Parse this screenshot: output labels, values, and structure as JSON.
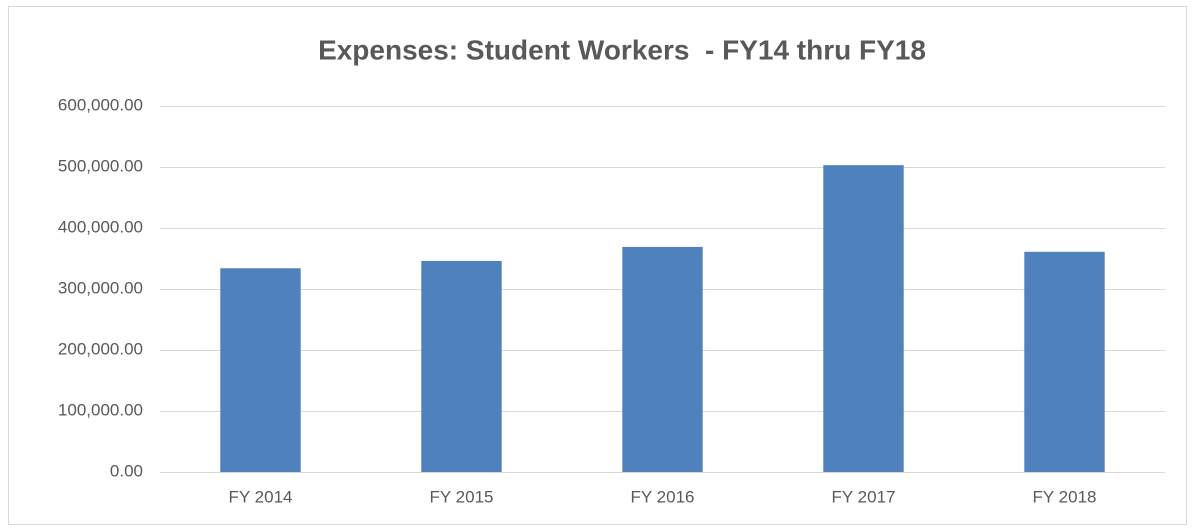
{
  "chart_data": {
    "type": "bar",
    "title": "Expenses: Student Workers  - FY14 thru FY18",
    "categories": [
      "FY 2014",
      "FY 2015",
      "FY 2016",
      "FY 2017",
      "FY 2018"
    ],
    "values": [
      334000,
      346000,
      369000,
      503000,
      361000
    ],
    "color": "#4f81bd",
    "ylim": [
      0,
      600000
    ],
    "yticks": [
      {
        "value": 0,
        "label": "0.00"
      },
      {
        "value": 100000,
        "label": "100,000.00"
      },
      {
        "value": 200000,
        "label": "200,000.00"
      },
      {
        "value": 300000,
        "label": "300,000.00"
      },
      {
        "value": 400000,
        "label": "400,000.00"
      },
      {
        "value": 500000,
        "label": "500,000.00"
      },
      {
        "value": 600000,
        "label": "600,000.00"
      }
    ],
    "grid": true
  }
}
